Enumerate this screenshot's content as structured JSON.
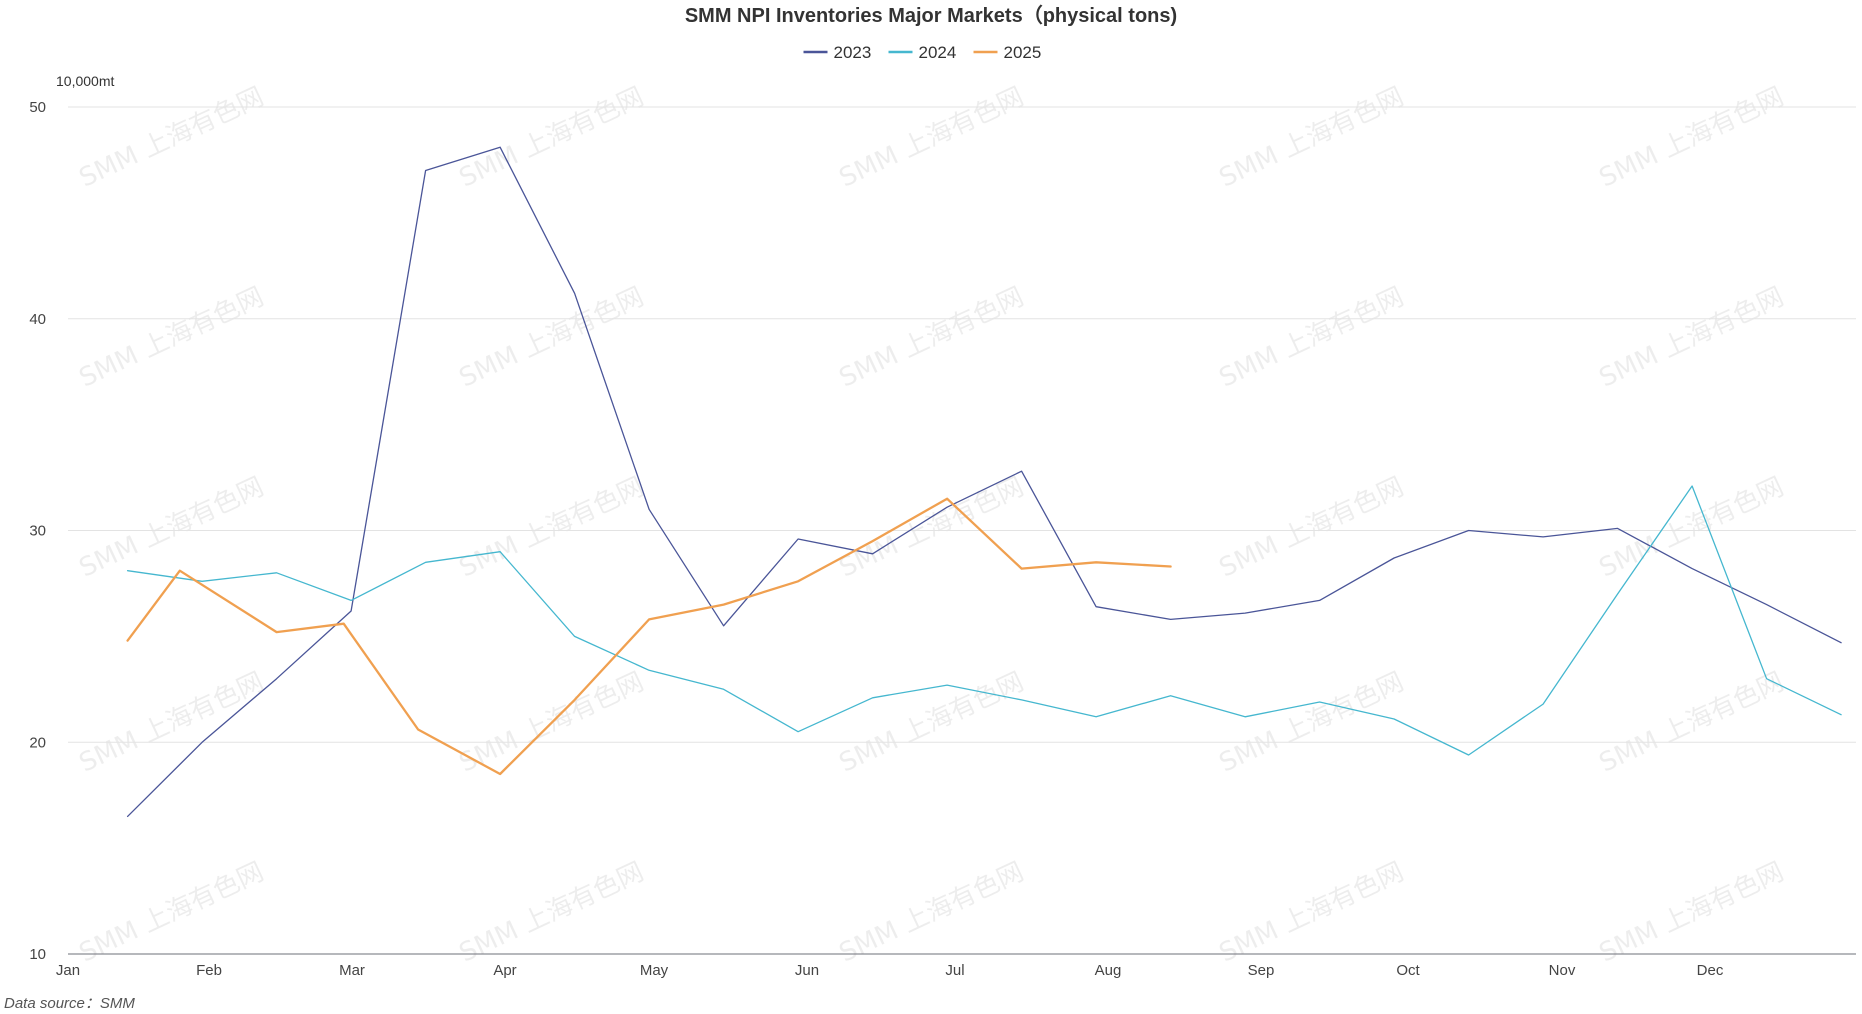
{
  "chart_data": {
    "type": "line",
    "title": "SMM NPI Inventories Major Markets（physical tons)",
    "yunit": "10,000mt",
    "source": "Data source：SMM",
    "watermark": "SMM 上海有色网",
    "ylim": [
      10,
      50
    ],
    "yticks": [
      10,
      20,
      30,
      40,
      50
    ],
    "xlim": [
      0,
      12
    ],
    "xticks": [
      "Jan",
      "Feb",
      "Mar",
      "Apr",
      "May",
      "Jun",
      "Jul",
      "Aug",
      "Sep",
      "Oct",
      "Nov",
      "Dec"
    ],
    "grid": true,
    "legend_position": "top-center",
    "series": [
      {
        "name": "2023",
        "color": "#4a5598",
        "width": 1.3,
        "x": [
          0.4,
          0.9,
          1.4,
          1.9,
          2.4,
          2.9,
          3.4,
          3.9,
          4.4,
          4.9,
          5.4,
          5.9,
          6.4,
          6.9,
          7.4,
          7.9,
          8.4,
          8.9,
          9.4,
          9.9,
          10.4,
          10.9,
          11.4,
          11.9
        ],
        "values": [
          16.5,
          20.0,
          23.0,
          26.2,
          47.0,
          48.1,
          41.2,
          31.0,
          25.5,
          29.6,
          28.9,
          31.1,
          32.8,
          26.4,
          25.8,
          26.1,
          26.7,
          28.7,
          30.0,
          29.7,
          30.1,
          28.2,
          26.5,
          24.7
        ]
      },
      {
        "name": "2024",
        "color": "#45b7cf",
        "width": 1.3,
        "x": [
          0.4,
          0.9,
          1.4,
          1.9,
          2.4,
          2.9,
          3.4,
          3.9,
          4.4,
          4.9,
          5.4,
          5.9,
          6.4,
          6.9,
          7.4,
          7.9,
          8.4,
          8.9,
          9.4,
          9.9,
          10.4,
          10.9,
          11.4,
          11.9
        ],
        "values": [
          28.1,
          27.6,
          28.0,
          26.7,
          28.5,
          29.0,
          25.0,
          23.4,
          22.5,
          20.5,
          22.1,
          22.7,
          22.0,
          21.2,
          22.2,
          21.2,
          21.9,
          21.1,
          19.4,
          21.8,
          27.0,
          32.1,
          23.0,
          21.3
        ]
      },
      {
        "name": "2025",
        "color": "#f0a050",
        "width": 2.3,
        "x": [
          0.4,
          0.75,
          1.4,
          1.85,
          2.35,
          2.9,
          3.4,
          3.9,
          4.4,
          4.9,
          5.4,
          5.9,
          6.4,
          6.9,
          7.4
        ],
        "values": [
          24.8,
          28.1,
          25.2,
          25.6,
          20.6,
          18.5,
          22.0,
          25.8,
          26.5,
          27.6,
          29.5,
          31.5,
          28.2,
          28.5,
          28.3
        ]
      }
    ]
  }
}
